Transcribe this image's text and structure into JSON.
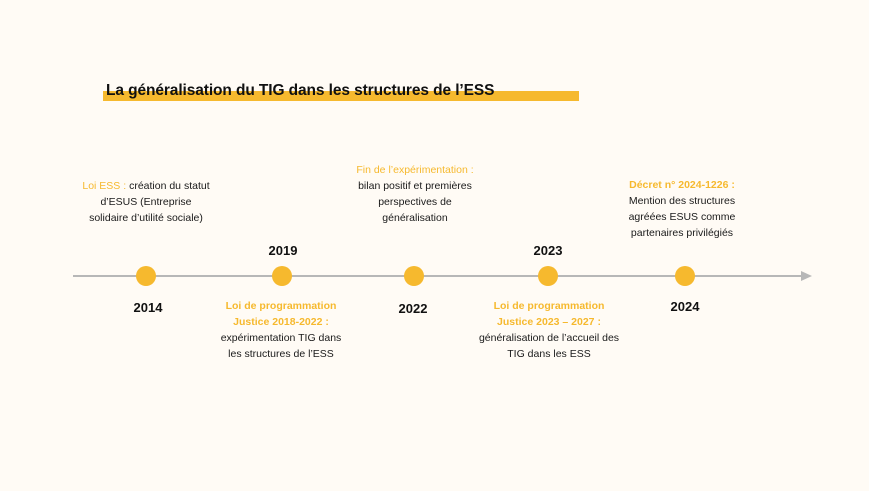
{
  "title": "La généralisation du TIG dans les structures de l’ESS",
  "colors": {
    "accent": "#f6b92e",
    "axis": "#b7b7b7",
    "background": "#fffbf5"
  },
  "events": [
    {
      "year": "2014",
      "position": "above",
      "head": "Loi ESS :",
      "text": " création du statut d’ESUS (Entreprise solidaire d’utilité sociale)"
    },
    {
      "year": "2019",
      "position": "below",
      "head": "Loi de programmation Justice 2018-2022 :",
      "text": "expérimentation TIG dans les structures de l’ESS"
    },
    {
      "year": "2022",
      "position": "above",
      "head": "Fin de l’expérimentation :",
      "text": "bilan positif et premières perspectives de généralisation"
    },
    {
      "year": "2023",
      "position": "below",
      "head": "Loi de programmation Justice 2023 – 2027 :",
      "text": "généralisation de l’accueil des TIG dans les ESS"
    },
    {
      "year": "2024",
      "position": "above",
      "head": "Décret n° 2024-1226 :",
      "text": "Mention des structures agréées ESUS comme partenaires privilégiés"
    }
  ]
}
